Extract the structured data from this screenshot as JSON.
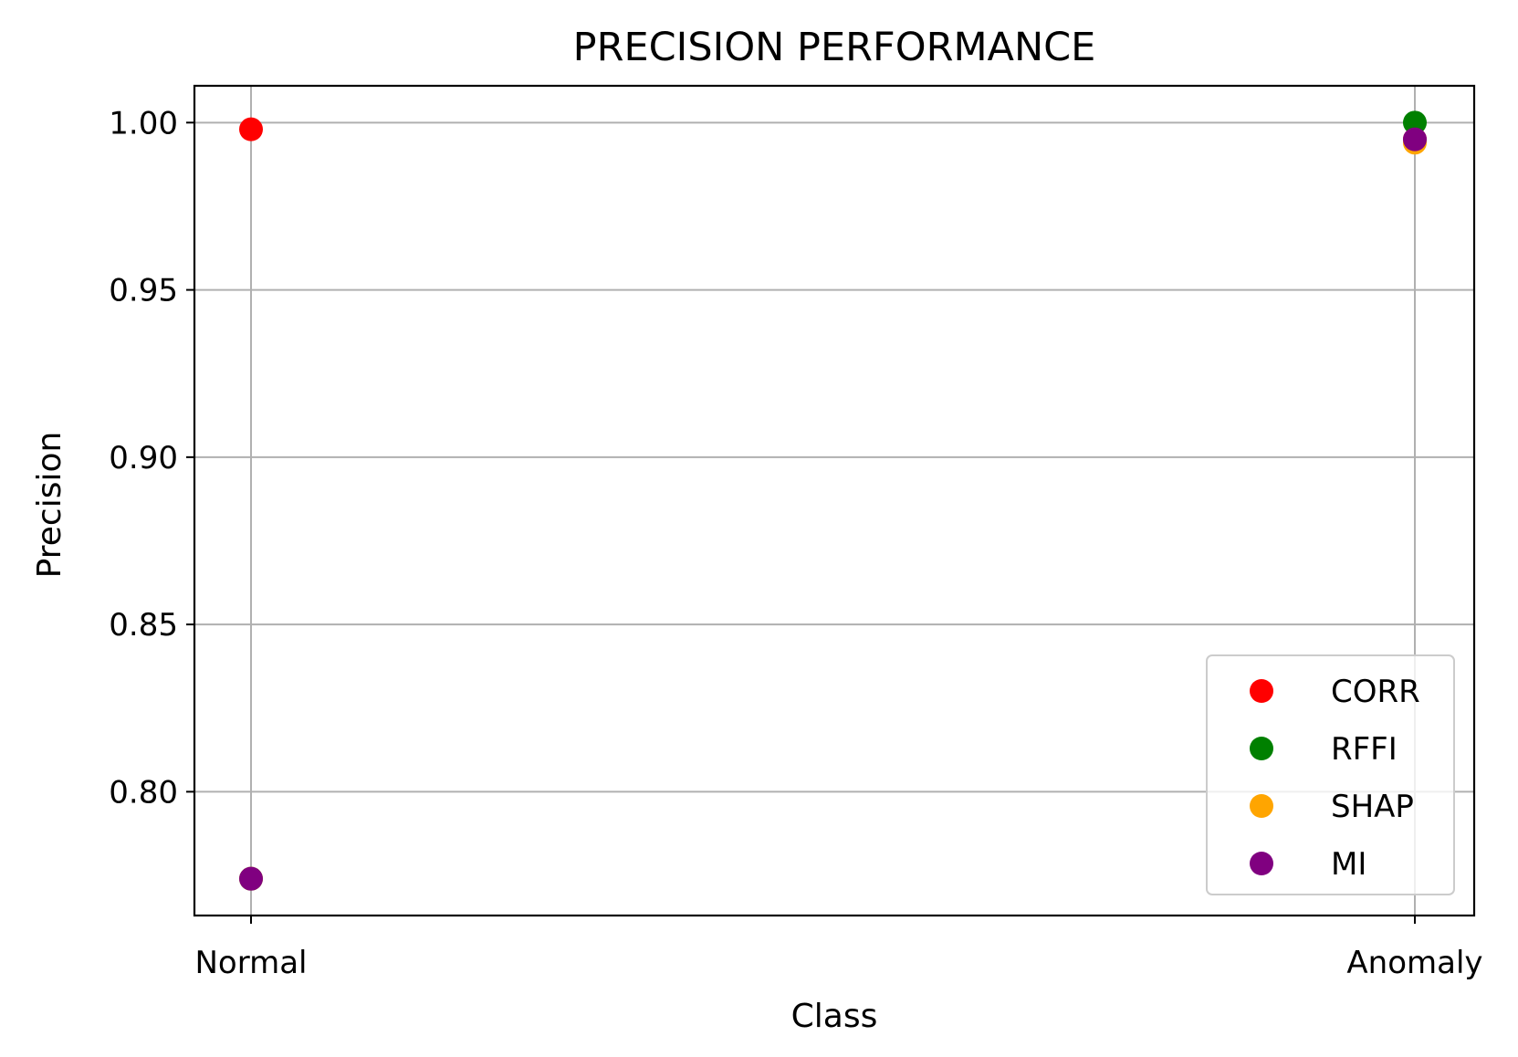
{
  "chart_data": {
    "type": "scatter",
    "title": "PRECISION PERFORMANCE",
    "xlabel": "Class",
    "ylabel": "Precision",
    "categories": [
      "Normal",
      "Anomaly"
    ],
    "ylim": [
      0.763,
      1.011
    ],
    "yticks": [
      "0.80",
      "0.85",
      "0.90",
      "0.95",
      "1.00"
    ],
    "grid": true,
    "legend_position": "lower-right",
    "series": [
      {
        "name": "CORR",
        "color": "#ff0000",
        "values": [
          0.998,
          0.995
        ]
      },
      {
        "name": "RFFI",
        "color": "#008000",
        "values": [
          0.774,
          1.0
        ]
      },
      {
        "name": "SHAP",
        "color": "#ffa500",
        "values": [
          0.774,
          0.994
        ]
      },
      {
        "name": "MI",
        "color": "#800080",
        "values": [
          0.774,
          0.995
        ]
      }
    ]
  }
}
